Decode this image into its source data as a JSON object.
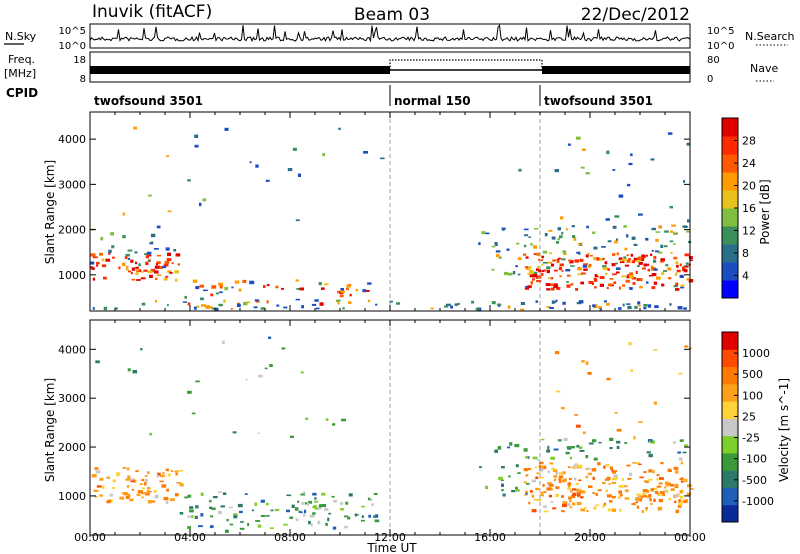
{
  "header": {
    "station": "Inuvik (fitACF)",
    "beam": "Beam 03",
    "date": "22/Dec/2012"
  },
  "strip_labels": {
    "nsky": "N.Sky",
    "nsky_top": "10^5",
    "nsky_bottom": "10^0",
    "nsearch": "N.Search",
    "nsearch_top": "10^5",
    "nsearch_bottom": "10^0",
    "freq_line1": "Freq.",
    "freq_line2": "[MHz]",
    "freq_top": "18",
    "freq_bottom": "8",
    "nave": "Nave",
    "nave_top": "80",
    "nave_bottom": "0",
    "cpid": "CPID"
  },
  "cpid_segments": [
    {
      "label": "twofsound 3501",
      "start_hour": 0
    },
    {
      "label": "normal 150",
      "start_hour": 12
    },
    {
      "label": "twofsound 3501",
      "start_hour": 18
    }
  ],
  "colors": {
    "power_scale": [
      "#0000ff",
      "#1a4ec0",
      "#2a6e8a",
      "#3a8f5a",
      "#7fbf3f",
      "#e8c21a",
      "#ff9a00",
      "#ff5a00",
      "#ff2a00",
      "#e00000"
    ],
    "velocity_scale": [
      "#0a2a9a",
      "#1f5fb8",
      "#2e7a6a",
      "#3a9a3a",
      "#7ccf2a",
      "#c8c8c8",
      "#ffd23a",
      "#ffa01a",
      "#ff7a00",
      "#ff4a00",
      "#e00000"
    ]
  },
  "chart_data": [
    {
      "type": "heatmap",
      "name": "power",
      "xlabel": "",
      "ylabel": "Slant Range [km]",
      "x_range_hours": [
        0,
        24
      ],
      "ylim": [
        200,
        4600
      ],
      "yticks": [
        1000,
        2000,
        3000,
        4000
      ],
      "colorbar": {
        "label": "Power [dB]",
        "range": [
          0,
          32
        ],
        "ticks": [
          4,
          8,
          12,
          16,
          20,
          24,
          28
        ]
      }
    },
    {
      "type": "heatmap",
      "name": "velocity",
      "xlabel": "Time UT",
      "ylabel": "Slant Range [km]",
      "x_range_hours": [
        0,
        24
      ],
      "xticks": [
        "00:00",
        "04:00",
        "08:00",
        "12:00",
        "16:00",
        "20:00",
        "00:00"
      ],
      "ylim": [
        200,
        4600
      ],
      "yticks": [
        1000,
        2000,
        3000,
        4000
      ],
      "colorbar": {
        "label": "Velocity [m s^-1]",
        "ticks": [
          "1000",
          "500",
          "100",
          "25",
          "-25",
          "-100",
          "-500",
          "-1000"
        ]
      }
    }
  ]
}
